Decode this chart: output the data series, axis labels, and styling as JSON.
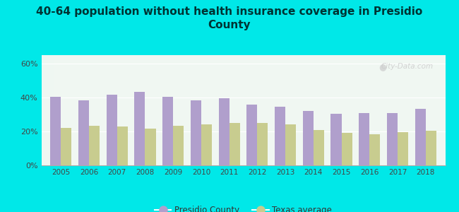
{
  "title": "40-64 population without health insurance coverage in Presidio\nCounty",
  "years": [
    2005,
    2006,
    2007,
    2008,
    2009,
    2010,
    2011,
    2012,
    2013,
    2014,
    2015,
    2016,
    2017,
    2018
  ],
  "presidio": [
    40.5,
    38.5,
    41.5,
    43.5,
    40.5,
    38.5,
    39.5,
    36.0,
    34.5,
    32.0,
    30.5,
    31.0,
    31.0,
    33.5
  ],
  "texas": [
    22.0,
    23.5,
    23.0,
    21.5,
    23.5,
    24.0,
    25.0,
    25.0,
    24.0,
    21.0,
    19.0,
    18.5,
    19.5,
    20.5
  ],
  "presidio_color": "#b09fcc",
  "texas_color": "#c8cc8f",
  "background_outer": "#00e8e8",
  "background_inner": "#e8f5ee",
  "ylim": [
    0,
    65
  ],
  "yticks": [
    0,
    20,
    40,
    60
  ],
  "ytick_labels": [
    "0%",
    "20%",
    "40%",
    "60%"
  ],
  "bar_width": 0.38,
  "legend_presidio": "Presidio County",
  "legend_texas": "Texas average",
  "title_fontsize": 11,
  "title_color": "#003333",
  "watermark": "City-Data.com"
}
